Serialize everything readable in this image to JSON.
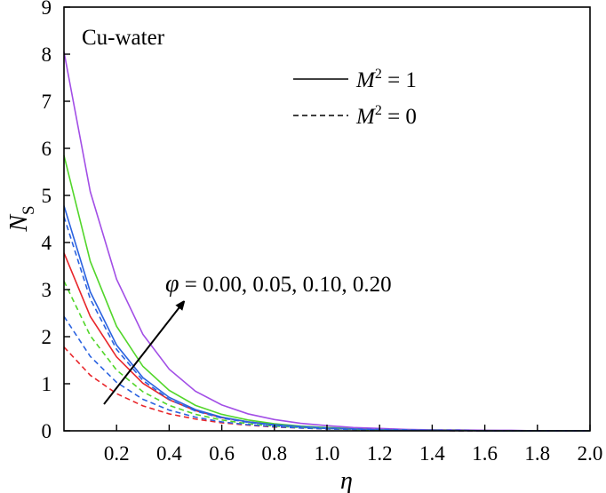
{
  "chart_data": {
    "type": "line",
    "title": "Cu-water",
    "xlabel": "η",
    "ylabel_main": "N",
    "ylabel_sub": "S",
    "xlim": [
      0,
      2.0
    ],
    "ylim": [
      0,
      9
    ],
    "xticks": [
      0.2,
      0.4,
      0.6,
      0.8,
      1.0,
      1.2,
      1.4,
      1.6,
      1.8,
      2.0
    ],
    "xtick_labels": [
      "0.2",
      "0.4",
      "0.6",
      "0.8",
      "1.0",
      "1.2",
      "1.4",
      "1.6",
      "1.8",
      "2.0"
    ],
    "yticks": [
      0,
      1,
      2,
      3,
      4,
      5,
      6,
      7,
      8,
      9
    ],
    "ytick_labels": [
      "0",
      "1",
      "2",
      "3",
      "4",
      "5",
      "6",
      "7",
      "8",
      "9"
    ],
    "grid": false,
    "legend_position": "top-right",
    "legend": [
      {
        "base": "M",
        "sup": "2",
        "rest": " = 1",
        "style": "solid"
      },
      {
        "base": "M",
        "sup": "2",
        "rest": " = 0",
        "style": "dashed"
      }
    ],
    "annotation": {
      "symbol": "φ",
      "text": " = 0.00, 0.05, 0.10, 0.20"
    },
    "x": [
      0,
      0.1,
      0.2,
      0.3,
      0.4,
      0.5,
      0.6,
      0.7,
      0.8,
      0.9,
      1.0,
      1.1,
      1.2,
      1.3,
      1.4,
      1.5,
      1.6,
      1.7,
      1.8,
      1.9,
      2.0
    ],
    "series": [
      {
        "color": "#e8262b",
        "style": "solid",
        "values": [
          3.78,
          2.43,
          1.57,
          1.01,
          0.66,
          0.43,
          0.28,
          0.19,
          0.13,
          0.09,
          0.06,
          0.04,
          0.03,
          0.02,
          0.01,
          0.01,
          0.0,
          0.0,
          0.0,
          0.0,
          0.0
        ]
      },
      {
        "color": "#52d62a",
        "style": "solid",
        "values": [
          5.85,
          3.6,
          2.22,
          1.37,
          0.86,
          0.54,
          0.35,
          0.23,
          0.15,
          0.1,
          0.07,
          0.05,
          0.03,
          0.02,
          0.02,
          0.01,
          0.01,
          0.0,
          0.0,
          0.0,
          0.0
        ]
      },
      {
        "color": "#2b63e0",
        "style": "solid",
        "values": [
          4.78,
          2.95,
          1.82,
          1.13,
          0.71,
          0.45,
          0.29,
          0.19,
          0.13,
          0.09,
          0.06,
          0.04,
          0.03,
          0.02,
          0.01,
          0.01,
          0.0,
          0.0,
          0.0,
          0.0,
          0.0
        ]
      },
      {
        "color": "#a24ee6",
        "style": "solid",
        "values": [
          8.05,
          5.08,
          3.22,
          2.05,
          1.31,
          0.84,
          0.55,
          0.36,
          0.24,
          0.16,
          0.11,
          0.07,
          0.05,
          0.03,
          0.02,
          0.02,
          0.01,
          0.01,
          0.0,
          0.0,
          0.0
        ]
      },
      {
        "color": "#e8262b",
        "style": "dashed",
        "values": [
          1.78,
          1.18,
          0.79,
          0.53,
          0.36,
          0.25,
          0.17,
          0.12,
          0.08,
          0.06,
          0.04,
          0.03,
          0.02,
          0.01,
          0.01,
          0.0,
          0.0,
          0.0,
          0.0,
          0.0,
          0.0
        ]
      },
      {
        "color": "#52d62a",
        "style": "dashed",
        "values": [
          3.18,
          2.02,
          1.29,
          0.83,
          0.54,
          0.35,
          0.23,
          0.15,
          0.1,
          0.07,
          0.05,
          0.03,
          0.02,
          0.01,
          0.01,
          0.01,
          0.0,
          0.0,
          0.0,
          0.0,
          0.0
        ]
      },
      {
        "color": "#2b63e0",
        "style": "dashed",
        "values": [
          2.43,
          1.58,
          1.03,
          0.67,
          0.44,
          0.29,
          0.19,
          0.13,
          0.09,
          0.06,
          0.04,
          0.03,
          0.02,
          0.01,
          0.01,
          0.0,
          0.0,
          0.0,
          0.0,
          0.0,
          0.0
        ]
      },
      {
        "color": "#2b63e0",
        "style": "dashed",
        "values": [
          4.55,
          2.8,
          1.73,
          1.07,
          0.67,
          0.42,
          0.27,
          0.18,
          0.12,
          0.08,
          0.05,
          0.04,
          0.03,
          0.02,
          0.01,
          0.01,
          0.0,
          0.0,
          0.0,
          0.0,
          0.0
        ]
      }
    ]
  }
}
